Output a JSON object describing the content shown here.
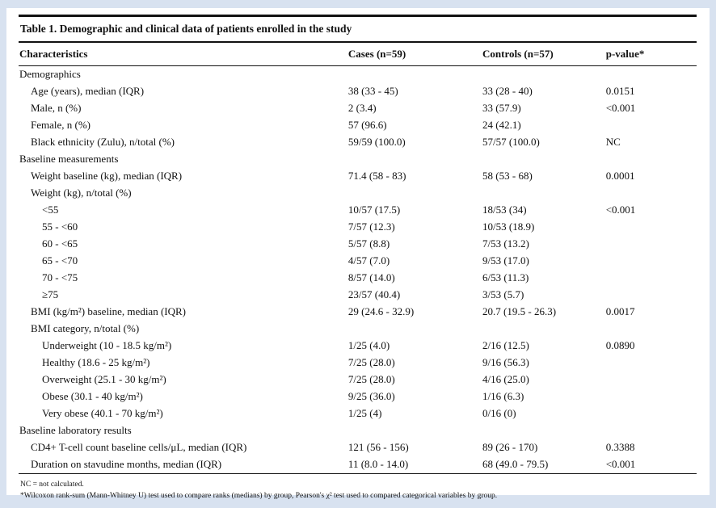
{
  "page": {
    "background": "#d8e2f0",
    "panel_background": "#ffffff"
  },
  "table": {
    "title": "Table 1. Demographic and clinical data of patients enrolled in the study",
    "columns": [
      "Characteristics",
      "Cases (n=59)",
      "Controls (n=57)",
      "p-value*"
    ],
    "rows": [
      {
        "label": "Demographics",
        "indent": 0,
        "section": true,
        "cases": "",
        "controls": "",
        "p": ""
      },
      {
        "label": "Age (years), median (IQR)",
        "indent": 1,
        "section": false,
        "cases": "38 (33 - 45)",
        "controls": "33 (28 - 40)",
        "p": "0.0151"
      },
      {
        "label": "Male, n (%)",
        "indent": 1,
        "section": false,
        "cases": "2 (3.4)",
        "controls": "33 (57.9)",
        "p": "<0.001"
      },
      {
        "label": "Female, n (%)",
        "indent": 1,
        "section": false,
        "cases": "57 (96.6)",
        "controls": "24 (42.1)",
        "p": ""
      },
      {
        "label": "Black ethnicity (Zulu), n/total (%)",
        "indent": 1,
        "section": false,
        "cases": "59/59 (100.0)",
        "controls": "57/57 (100.0)",
        "p": "NC"
      },
      {
        "label": "Baseline measurements",
        "indent": 0,
        "section": true,
        "cases": "",
        "controls": "",
        "p": ""
      },
      {
        "label": "Weight baseline (kg), median (IQR)",
        "indent": 1,
        "section": false,
        "cases": "71.4 (58 - 83)",
        "controls": "58 (53 - 68)",
        "p": "0.0001"
      },
      {
        "label": "Weight (kg), n/total (%)",
        "indent": 1,
        "section": false,
        "cases": "",
        "controls": "",
        "p": ""
      },
      {
        "label": "<55",
        "indent": 2,
        "section": false,
        "cases": "10/57 (17.5)",
        "controls": "18/53 (34)",
        "p": "<0.001"
      },
      {
        "label": "55 - <60",
        "indent": 2,
        "section": false,
        "cases": "7/57 (12.3)",
        "controls": "10/53 (18.9)",
        "p": ""
      },
      {
        "label": "60 - <65",
        "indent": 2,
        "section": false,
        "cases": "5/57 (8.8)",
        "controls": "7/53 (13.2)",
        "p": ""
      },
      {
        "label": "65 - <70",
        "indent": 2,
        "section": false,
        "cases": "4/57 (7.0)",
        "controls": "9/53 (17.0)",
        "p": ""
      },
      {
        "label": "70 - <75",
        "indent": 2,
        "section": false,
        "cases": "8/57 (14.0)",
        "controls": "6/53 (11.3)",
        "p": ""
      },
      {
        "label": "≥75",
        "indent": 2,
        "section": false,
        "cases": "23/57 (40.4)",
        "controls": "3/53 (5.7)",
        "p": ""
      },
      {
        "label": "BMI (kg/m²) baseline, median (IQR)",
        "indent": 1,
        "section": false,
        "cases": "29 (24.6 - 32.9)",
        "controls": "20.7 (19.5 - 26.3)",
        "p": "0.0017"
      },
      {
        "label": "BMI category, n/total (%)",
        "indent": 1,
        "section": false,
        "cases": "",
        "controls": "",
        "p": ""
      },
      {
        "label": "Underweight (10 - 18.5 kg/m²)",
        "indent": 2,
        "section": false,
        "cases": "1/25 (4.0)",
        "controls": "2/16 (12.5)",
        "p": "0.0890"
      },
      {
        "label": "Healthy (18.6 - 25 kg/m²)",
        "indent": 2,
        "section": false,
        "cases": "7/25 (28.0)",
        "controls": "9/16 (56.3)",
        "p": ""
      },
      {
        "label": "Overweight (25.1 - 30 kg/m²)",
        "indent": 2,
        "section": false,
        "cases": "7/25 (28.0)",
        "controls": "4/16 (25.0)",
        "p": ""
      },
      {
        "label": "Obese (30.1 - 40 kg/m²)",
        "indent": 2,
        "section": false,
        "cases": "9/25 (36.0)",
        "controls": "1/16 (6.3)",
        "p": ""
      },
      {
        "label": "Very obese (40.1 - 70 kg/m²)",
        "indent": 2,
        "section": false,
        "cases": "1/25 (4)",
        "controls": "0/16 (0)",
        "p": ""
      },
      {
        "label": "Baseline laboratory results",
        "indent": 0,
        "section": true,
        "cases": "",
        "controls": "",
        "p": ""
      },
      {
        "label": "CD4+ T-cell count baseline cells/μL, median (IQR)",
        "indent": 1,
        "section": false,
        "cases": "121 (56 - 156)",
        "controls": "89 (26 - 170)",
        "p": "0.3388"
      },
      {
        "label": "Duration on stavudine months, median (IQR)",
        "indent": 1,
        "section": false,
        "cases": "11 (8.0 - 14.0)",
        "controls": "68 (49.0 - 79.5)",
        "p": "<0.001"
      }
    ],
    "footnotes": [
      "NC = not calculated.",
      "*Wilcoxon rank-sum (Mann-Whitney U) test used to compare ranks (medians) by group, Pearson's χ² test used to compared categorical variables by group."
    ]
  }
}
